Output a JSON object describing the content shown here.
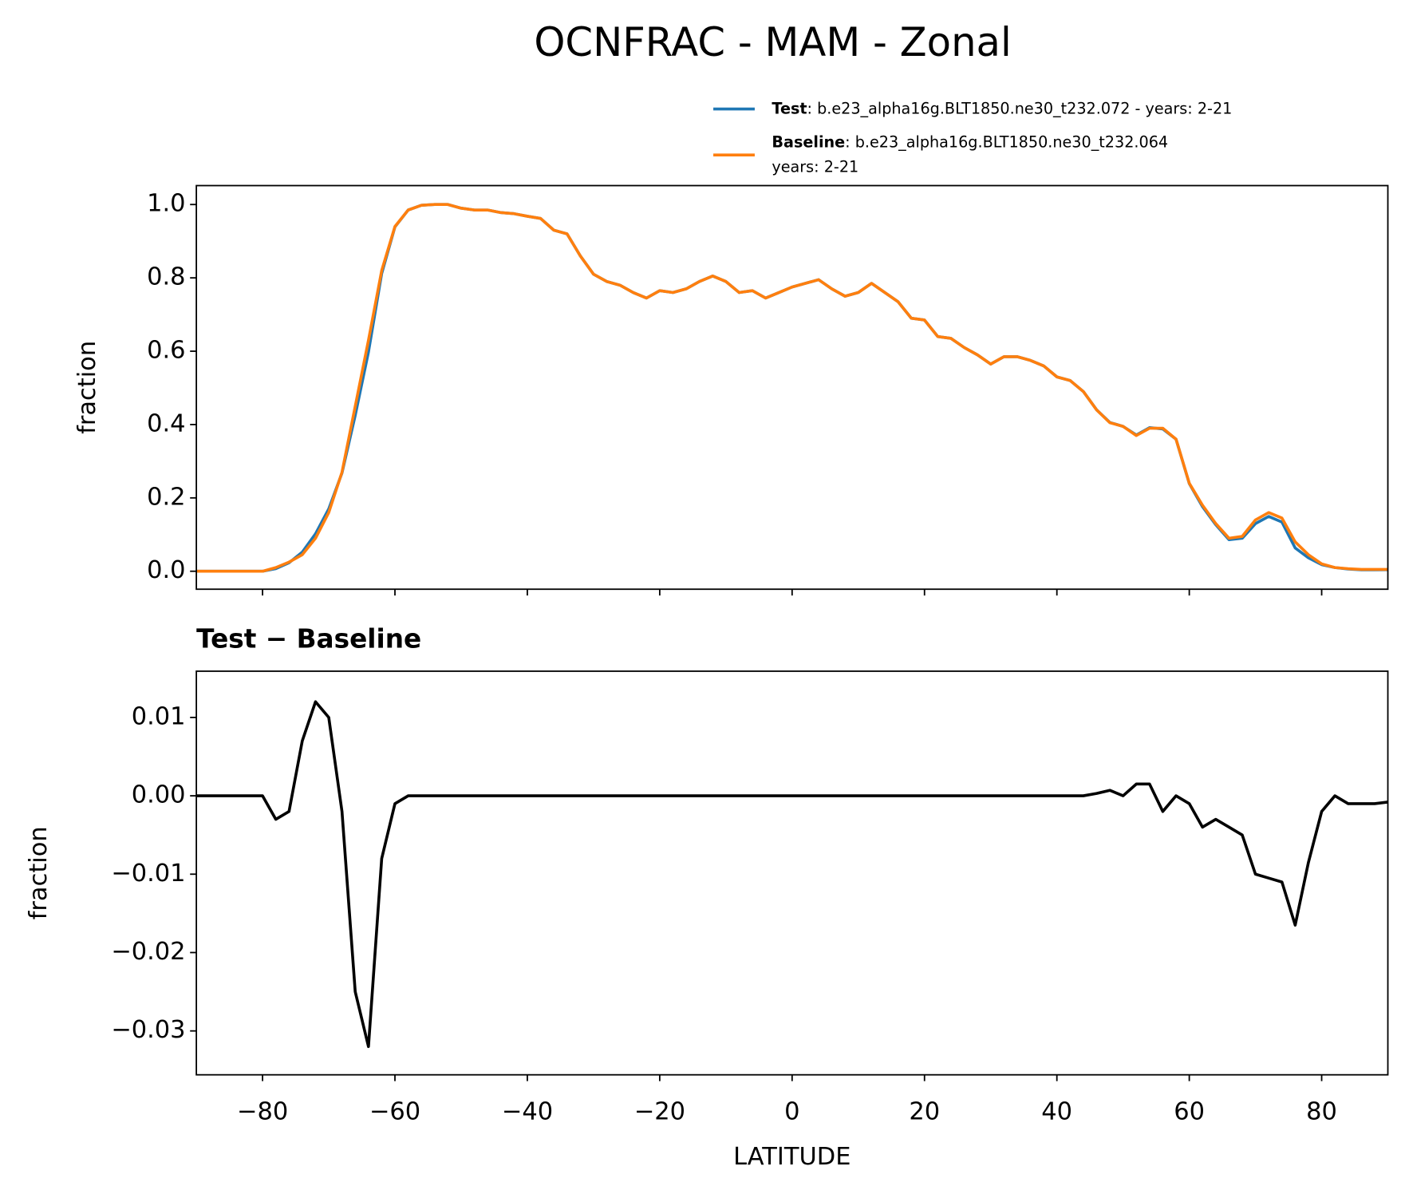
{
  "chart_data": [
    {
      "type": "line",
      "title": "OCNFRAC - MAM - Zonal",
      "ylabel": "fraction",
      "x": [
        -90,
        -88,
        -86,
        -84,
        -82,
        -80,
        -78,
        -76,
        -74,
        -72,
        -70,
        -68,
        -66,
        -64,
        -62,
        -60,
        -58,
        -56,
        -54,
        -52,
        -50,
        -48,
        -46,
        -44,
        -42,
        -40,
        -38,
        -36,
        -34,
        -32,
        -30,
        -28,
        -26,
        -24,
        -22,
        -20,
        -18,
        -16,
        -14,
        -12,
        -10,
        -8,
        -6,
        -4,
        -2,
        0,
        2,
        4,
        6,
        8,
        10,
        12,
        14,
        16,
        18,
        20,
        22,
        24,
        26,
        28,
        30,
        32,
        34,
        36,
        38,
        40,
        42,
        44,
        46,
        48,
        50,
        52,
        54,
        56,
        58,
        60,
        62,
        64,
        66,
        68,
        70,
        72,
        74,
        76,
        78,
        80,
        82,
        84,
        86,
        88,
        90
      ],
      "series": [
        {
          "name": "Test",
          "description": [
            ": b.e23_alpha16g.BLT1850.ne30_t232.072 - years: 2-21"
          ],
          "color": "#1f77b4",
          "values": [
            0,
            0,
            0,
            0,
            0,
            0,
            0.007,
            0.023,
            0.052,
            0.102,
            0.17,
            0.268,
            0.425,
            0.598,
            0.812,
            0.939,
            0.985,
            0.998,
            1.0,
            1.0,
            0.99,
            0.985,
            0.985,
            0.978,
            0.975,
            0.968,
            0.962,
            0.93,
            0.92,
            0.86,
            0.81,
            0.79,
            0.78,
            0.76,
            0.745,
            0.765,
            0.76,
            0.77,
            0.79,
            0.805,
            0.79,
            0.76,
            0.765,
            0.745,
            0.76,
            0.775,
            0.785,
            0.795,
            0.77,
            0.75,
            0.76,
            0.785,
            0.76,
            0.735,
            0.69,
            0.685,
            0.64,
            0.635,
            0.61,
            0.59,
            0.565,
            0.585,
            0.585,
            0.575,
            0.56,
            0.53,
            0.52,
            0.49,
            0.4403,
            0.4057,
            0.395,
            0.3715,
            0.3915,
            0.388,
            0.36,
            0.239,
            0.176,
            0.127,
            0.086,
            0.09,
            0.13,
            0.1495,
            0.134,
            0.0635,
            0.0365,
            0.018,
            0.01,
            0.006,
            0.004,
            0.004,
            0.0042
          ]
        },
        {
          "name": "Baseline",
          "description": [
            ": b.e23_alpha16g.BLT1850.ne30_t232.064",
            "years: 2-21"
          ],
          "color": "#ff7f0e",
          "values": [
            0,
            0,
            0,
            0,
            0,
            0,
            0.01,
            0.025,
            0.045,
            0.09,
            0.16,
            0.27,
            0.45,
            0.63,
            0.82,
            0.94,
            0.985,
            0.998,
            1.0,
            1.0,
            0.99,
            0.985,
            0.985,
            0.978,
            0.975,
            0.968,
            0.962,
            0.93,
            0.92,
            0.86,
            0.81,
            0.79,
            0.78,
            0.76,
            0.745,
            0.765,
            0.76,
            0.77,
            0.79,
            0.805,
            0.79,
            0.76,
            0.765,
            0.745,
            0.76,
            0.775,
            0.785,
            0.795,
            0.77,
            0.75,
            0.76,
            0.785,
            0.76,
            0.735,
            0.69,
            0.685,
            0.64,
            0.635,
            0.61,
            0.59,
            0.565,
            0.585,
            0.585,
            0.575,
            0.56,
            0.53,
            0.52,
            0.49,
            0.44,
            0.405,
            0.395,
            0.37,
            0.39,
            0.39,
            0.36,
            0.24,
            0.18,
            0.13,
            0.09,
            0.095,
            0.14,
            0.16,
            0.145,
            0.08,
            0.045,
            0.02,
            0.01,
            0.007,
            0.005,
            0.005,
            0.005
          ]
        }
      ],
      "xlim": [
        -90,
        90
      ],
      "ylim": [
        -0.049,
        1.0516
      ],
      "xticks": [
        -80,
        -60,
        -40,
        -20,
        0,
        20,
        40,
        60,
        80
      ],
      "xtick_labels": false,
      "yticks": [
        {
          "value": 0,
          "label": "0.0"
        },
        {
          "value": 0.2,
          "label": "0.2"
        },
        {
          "value": 0.4,
          "label": "0.4"
        },
        {
          "value": 0.6,
          "label": "0.6"
        },
        {
          "value": 0.8,
          "label": "0.8"
        },
        {
          "value": 1,
          "label": "1.0"
        }
      ],
      "legend": "upper right",
      "grid": false
    },
    {
      "type": "line",
      "title": "Test − Baseline",
      "xlabel": "LATITUDE",
      "ylabel": "fraction",
      "x": [
        -90,
        -88,
        -86,
        -84,
        -82,
        -80,
        -78,
        -76,
        -74,
        -72,
        -70,
        -68,
        -66,
        -64,
        -62,
        -60,
        -58,
        -56,
        -54,
        -52,
        -50,
        -48,
        -46,
        -44,
        -42,
        -40,
        -38,
        -36,
        -34,
        -32,
        -30,
        -28,
        -26,
        -24,
        -22,
        -20,
        -18,
        -16,
        -14,
        -12,
        -10,
        -8,
        -6,
        -4,
        -2,
        0,
        2,
        4,
        6,
        8,
        10,
        12,
        14,
        16,
        18,
        20,
        22,
        24,
        26,
        28,
        30,
        32,
        34,
        36,
        38,
        40,
        42,
        44,
        46,
        48,
        50,
        52,
        54,
        56,
        58,
        60,
        62,
        64,
        66,
        68,
        70,
        72,
        74,
        76,
        78,
        80,
        82,
        84,
        86,
        88,
        90
      ],
      "series": [
        {
          "color": "#000000",
          "values": [
            0,
            0,
            0,
            0,
            0,
            0,
            -0.003,
            -0.002,
            0.007,
            0.012,
            0.01,
            -0.002,
            -0.025,
            -0.032,
            -0.008,
            -0.001,
            0,
            0,
            0,
            0,
            0,
            0,
            0,
            0,
            0,
            0,
            0,
            0,
            0,
            0,
            0,
            0,
            0,
            0,
            0,
            0,
            0,
            0,
            0,
            0,
            0,
            0,
            0,
            0,
            0,
            0,
            0,
            0,
            0,
            0,
            0,
            0,
            0,
            0,
            0,
            0,
            0,
            0,
            0,
            0,
            0,
            0,
            0,
            0,
            0,
            0,
            0,
            0,
            0.0003,
            0.0007,
            0,
            0.0015,
            0.0015,
            -0.002,
            0,
            -0.001,
            -0.004,
            -0.003,
            -0.004,
            -0.005,
            -0.01,
            -0.0105,
            -0.011,
            -0.0165,
            -0.0085,
            -0.002,
            0,
            -0.001,
            -0.001,
            -0.001,
            -0.0008
          ]
        }
      ],
      "xlim": [
        -90,
        90
      ],
      "ylim": [
        -0.0356,
        0.0159
      ],
      "xticks": [
        {
          "value": -80,
          "label": "−80"
        },
        {
          "value": -60,
          "label": "−60"
        },
        {
          "value": -40,
          "label": "−40"
        },
        {
          "value": -20,
          "label": "−20"
        },
        0,
        20,
        40,
        60,
        80
      ],
      "xtick_labels": true,
      "yticks": [
        {
          "value": -0.03,
          "label": "−0.03"
        },
        {
          "value": -0.02,
          "label": "−0.02"
        },
        {
          "value": -0.01,
          "label": "−0.01"
        },
        {
          "value": 0,
          "label": "0.00"
        },
        {
          "value": 0.01,
          "label": "0.01"
        }
      ],
      "grid": false
    }
  ]
}
